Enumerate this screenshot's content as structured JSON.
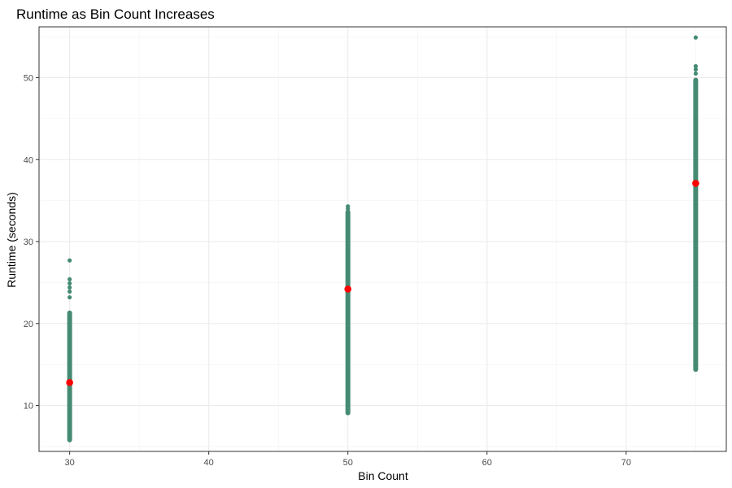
{
  "chart_data": {
    "type": "scatter",
    "title": "Runtime as Bin Count Increases",
    "xlabel": "Bin Count",
    "ylabel": "Runtime (seconds)",
    "xlim": [
      27.8,
      77.2
    ],
    "ylim": [
      4.4,
      56.2
    ],
    "x_ticks": [
      30,
      40,
      50,
      60,
      70
    ],
    "y_ticks": [
      10,
      20,
      30,
      40,
      50
    ],
    "grid": true,
    "legend": "none",
    "series": [
      {
        "color": "#458B74",
        "groups": [
          {
            "x": 30,
            "range": [
              5.8,
              21.3
            ],
            "outliers": [
              23.2,
              23.9,
              24.4,
              24.9,
              25.4,
              27.7
            ]
          },
          {
            "x": 50,
            "range": [
              9.1,
              33.6
            ],
            "outliers": [
              34.0,
              34.3
            ]
          },
          {
            "x": 75,
            "range": [
              14.4,
              49.7
            ],
            "outliers": [
              50.5,
              51.0,
              51.4,
              54.9
            ]
          }
        ]
      },
      {
        "color": "#FF0000",
        "points": [
          {
            "x": 30,
            "y": 12.8
          },
          {
            "x": 50,
            "y": 24.2
          },
          {
            "x": 75,
            "y": 37.1
          }
        ]
      }
    ]
  }
}
